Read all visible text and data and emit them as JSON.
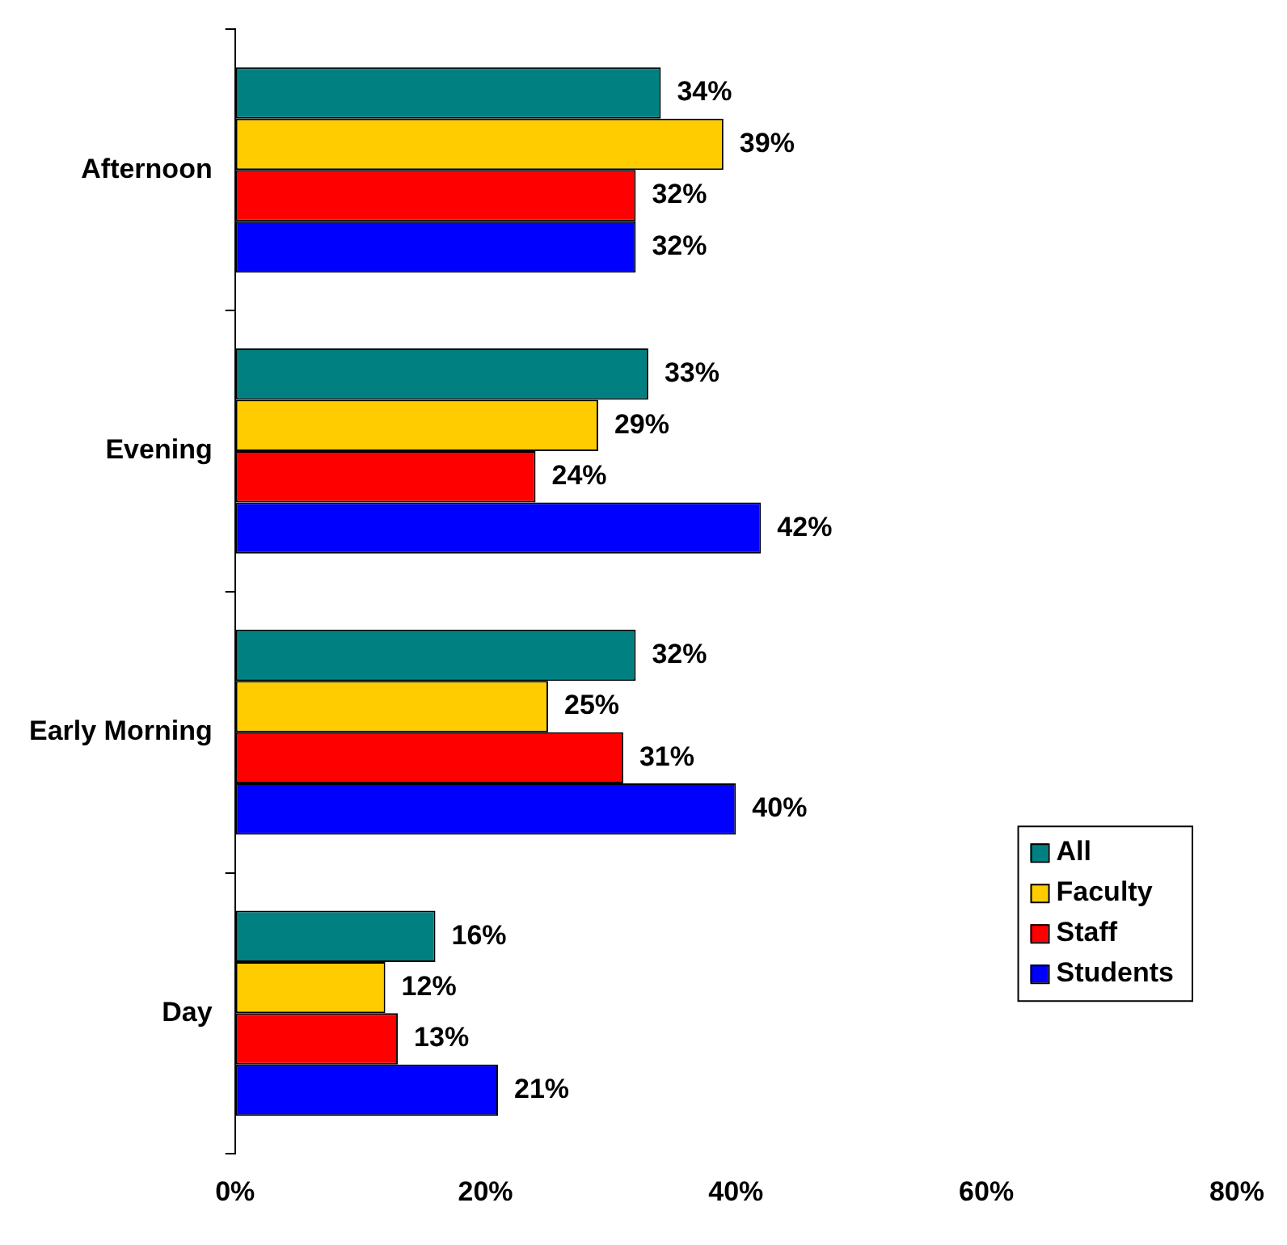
{
  "chart_data": {
    "type": "bar",
    "orientation": "horizontal",
    "categories": [
      "Afternoon",
      "Evening",
      "Early Morning",
      "Day"
    ],
    "series": [
      {
        "name": "All",
        "color": "#008080",
        "values": [
          34,
          33,
          32,
          16
        ],
        "value_labels": [
          "34%",
          "33%",
          "32%",
          "16%"
        ]
      },
      {
        "name": "Faculty",
        "color": "#ffcc00",
        "values": [
          39,
          29,
          25,
          12
        ],
        "value_labels": [
          "39%",
          "29%",
          "25%",
          "12%"
        ]
      },
      {
        "name": "Staff",
        "color": "#ff0000",
        "values": [
          32,
          24,
          31,
          13
        ],
        "value_labels": [
          "32%",
          "24%",
          "31%",
          "13%"
        ]
      },
      {
        "name": "Students",
        "color": "#0000ff",
        "values": [
          32,
          42,
          40,
          21
        ],
        "value_labels": [
          "32%",
          "42%",
          "40%",
          "21%"
        ]
      }
    ],
    "xlim": [
      0,
      80
    ],
    "xticks": [
      {
        "value": 0,
        "label": "0%"
      },
      {
        "value": 20,
        "label": "20%"
      },
      {
        "value": 40,
        "label": "40%"
      },
      {
        "value": 60,
        "label": "60%"
      },
      {
        "value": 80,
        "label": "80%"
      }
    ],
    "grid": false,
    "legend": "bottom right"
  }
}
